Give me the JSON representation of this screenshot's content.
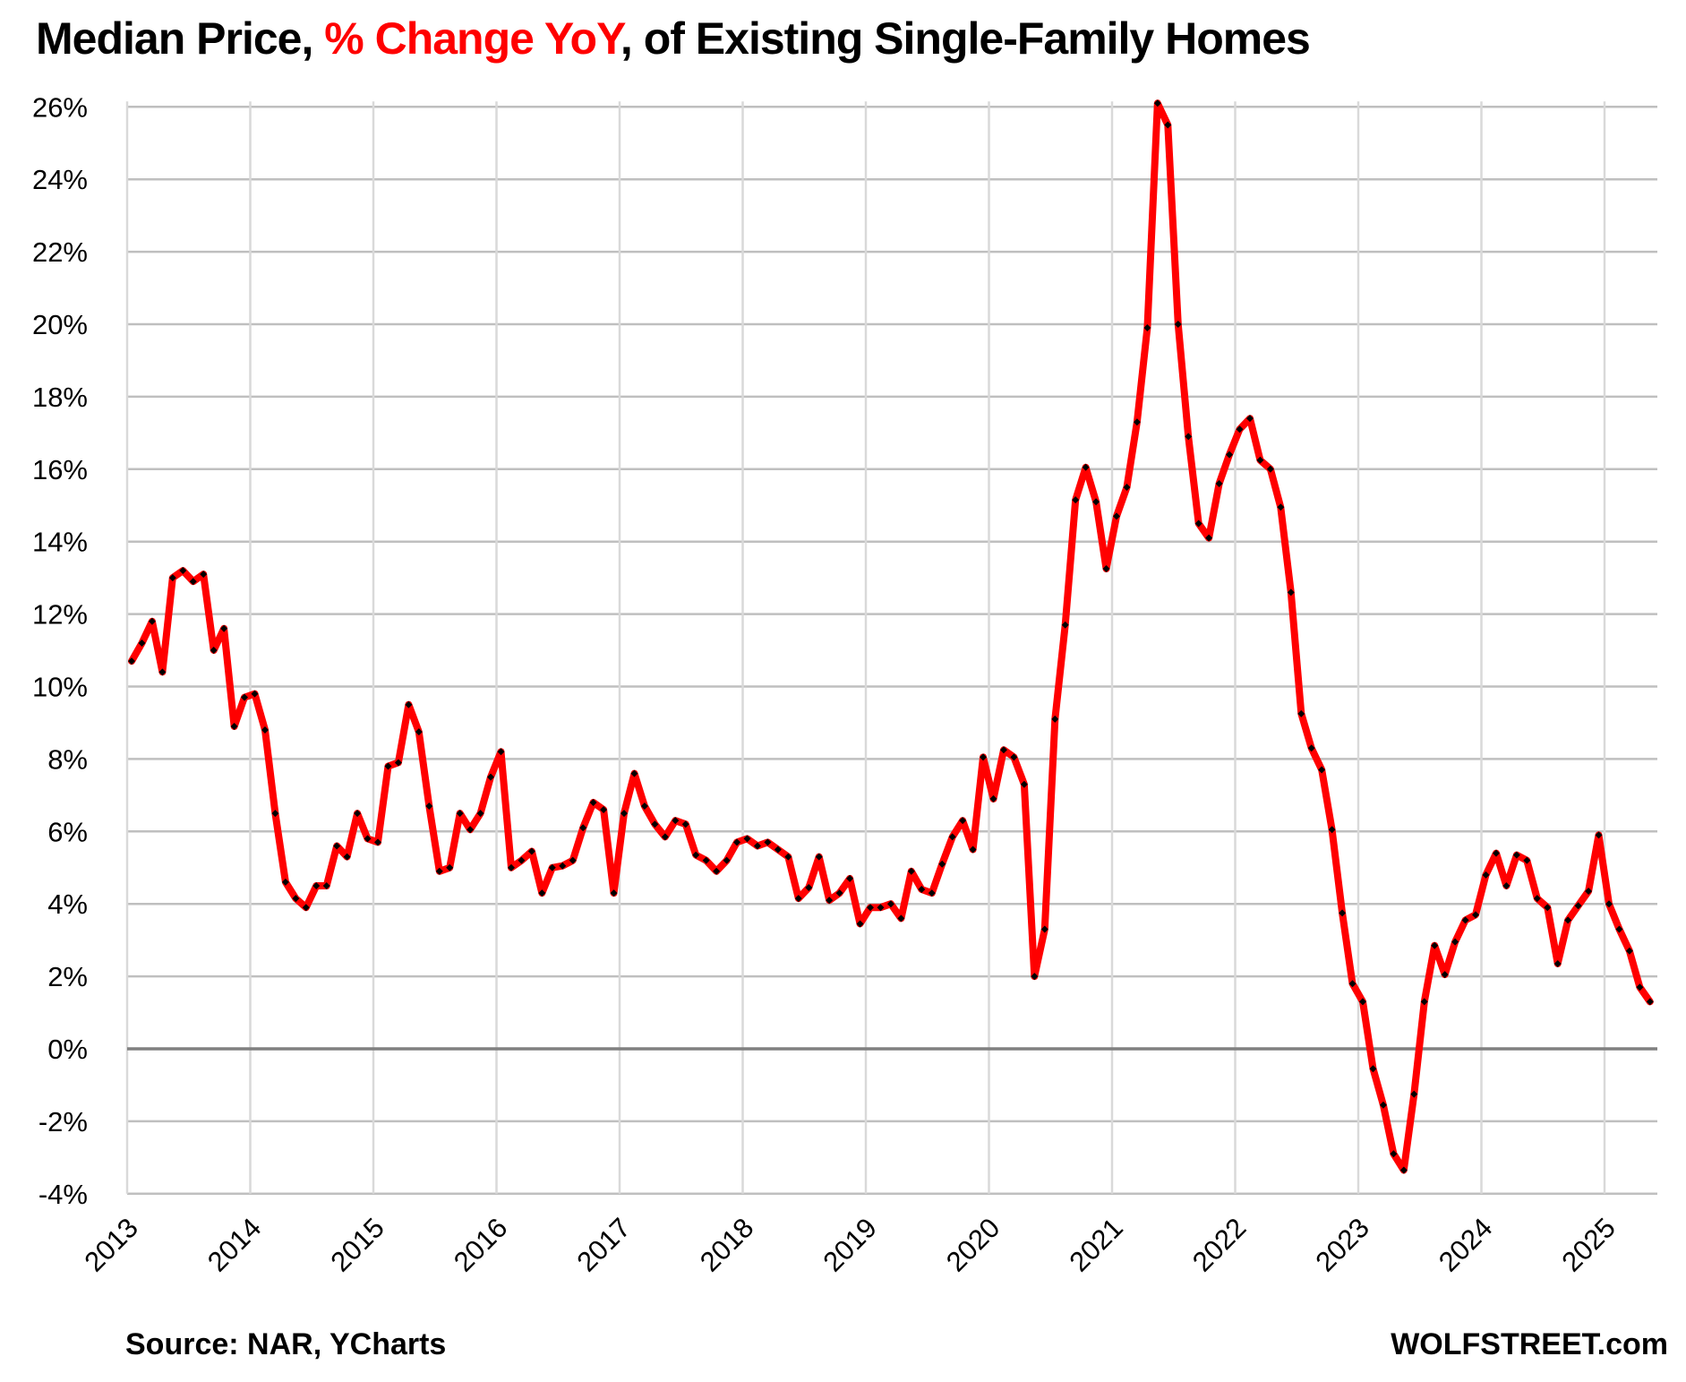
{
  "title": {
    "part1": "Median Price, ",
    "highlight": "% Change YoY",
    "part2": ", of Existing Single-Family Homes",
    "highlight_color": "#ff0000"
  },
  "footer": {
    "source": "Source: NAR, YCharts",
    "brand": "WOLFSTREET.com"
  },
  "chart_data": {
    "type": "line",
    "title": "Median Price, % Change YoY, of Existing Single-Family Homes",
    "xlabel": "",
    "ylabel": "",
    "ylim": [
      -4,
      26
    ],
    "yticks": [
      -4,
      -2,
      0,
      2,
      4,
      6,
      8,
      10,
      12,
      14,
      16,
      18,
      20,
      22,
      24,
      26
    ],
    "ytick_labels": [
      "-4%",
      "-2%",
      "0%",
      "2%",
      "4%",
      "6%",
      "8%",
      "10%",
      "12%",
      "14%",
      "16%",
      "18%",
      "20%",
      "22%",
      "24%",
      "26%"
    ],
    "xticks": [
      "2013",
      "2014",
      "2015",
      "2016",
      "2017",
      "2018",
      "2019",
      "2020",
      "2021",
      "2022",
      "2023",
      "2024",
      "2025"
    ],
    "x_start": "2013-01",
    "x_end": "2025-05",
    "frequency": "monthly",
    "grid": true,
    "legend": "none",
    "series": [
      {
        "name": "Median Price % Change YoY",
        "color": "#ff0000",
        "marker_color": "#000000",
        "values": [
          10.7,
          11.2,
          11.8,
          10.4,
          13.0,
          13.2,
          12.9,
          13.1,
          11.0,
          11.6,
          8.9,
          9.7,
          9.8,
          8.8,
          6.5,
          4.6,
          4.15,
          3.9,
          4.5,
          4.5,
          5.6,
          5.3,
          6.5,
          5.8,
          5.7,
          7.8,
          7.9,
          9.5,
          8.75,
          6.7,
          4.9,
          5.0,
          6.5,
          6.05,
          6.5,
          7.5,
          8.2,
          5.0,
          5.2,
          5.45,
          4.3,
          5.0,
          5.05,
          5.2,
          6.1,
          6.8,
          6.6,
          4.3,
          6.5,
          7.6,
          6.7,
          6.2,
          5.85,
          6.3,
          6.2,
          5.35,
          5.2,
          4.9,
          5.2,
          5.7,
          5.8,
          5.6,
          5.7,
          5.5,
          5.3,
          4.15,
          4.45,
          5.3,
          4.1,
          4.3,
          4.7,
          3.45,
          3.9,
          3.9,
          4.0,
          3.6,
          4.9,
          4.4,
          4.3,
          5.1,
          5.85,
          6.3,
          5.5,
          8.05,
          6.9,
          8.25,
          8.05,
          7.3,
          2.0,
          3.3,
          9.1,
          11.7,
          15.15,
          16.05,
          15.1,
          13.25,
          14.7,
          15.5,
          17.3,
          19.9,
          26.1,
          25.5,
          20.0,
          16.9,
          14.5,
          14.1,
          15.6,
          16.4,
          17.1,
          17.4,
          16.25,
          16.0,
          14.95,
          12.6,
          9.25,
          8.3,
          7.7,
          6.05,
          3.75,
          1.8,
          1.3,
          -0.55,
          -1.55,
          -2.9,
          -3.35,
          -1.25,
          1.3,
          2.85,
          2.05,
          2.95,
          3.55,
          3.7,
          4.8,
          5.4,
          4.5,
          5.35,
          5.2,
          4.15,
          3.9,
          2.35,
          3.55,
          3.95,
          4.35,
          5.9,
          4.0,
          3.3,
          2.7,
          1.7,
          1.3
        ]
      }
    ]
  }
}
